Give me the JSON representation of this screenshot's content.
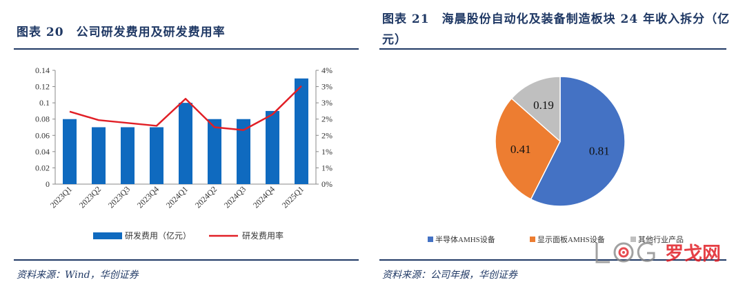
{
  "left": {
    "title": "图表 20　公司研发费用及研发费用率",
    "source": "资料来源：Wind，华创证券"
  },
  "right": {
    "title": "图表 21　海晨股份自动化及装备制造板块 24 年收入拆分（亿元）",
    "source": "资料来源：公司年报，华创证券"
  },
  "watermark": {
    "text": "罗戈网"
  },
  "colors": {
    "bar": "#0f6abf",
    "line": "#e11f26",
    "pie1": "#4472c4",
    "pie2": "#ed7d31",
    "pie3": "#bfbfbf",
    "navy": "#1f3864"
  },
  "chart_data": [
    {
      "type": "bar",
      "categories": [
        "2023Q1",
        "2023Q2",
        "2023Q3",
        "2023Q4",
        "2024Q1",
        "2024Q2",
        "2024Q3",
        "2024Q4",
        "2025Q1"
      ],
      "series": [
        {
          "name": "研发费用（亿元）",
          "type": "bar",
          "axis": "left",
          "values": [
            0.08,
            0.07,
            0.07,
            0.07,
            0.1,
            0.08,
            0.08,
            0.09,
            0.13
          ]
        },
        {
          "name": "研发费用率",
          "type": "line",
          "axis": "right",
          "values": [
            0.0255,
            0.0225,
            0.0215,
            0.0205,
            0.03,
            0.02,
            0.019,
            0.0245,
            0.0345
          ]
        }
      ],
      "ylim_left": [
        0,
        0.14
      ],
      "yticks_left": [
        "0",
        "0.02",
        "0.04",
        "0.06",
        "0.08",
        "0.1",
        "0.12",
        "0.14"
      ],
      "ylim_right": [
        0,
        0.04
      ],
      "yticks_right": [
        "0%",
        "1%",
        "1%",
        "2%",
        "2%",
        "3%",
        "3%",
        "4%"
      ],
      "legend": "bottom"
    },
    {
      "type": "pie",
      "categories": [
        "半导体AMHS设备",
        "显示面板AMHS设备",
        "其他行业产品"
      ],
      "values": [
        0.81,
        0.41,
        0.19
      ],
      "labels": [
        "0.81",
        "0.41",
        "0.19"
      ],
      "legend": "bottom"
    }
  ]
}
